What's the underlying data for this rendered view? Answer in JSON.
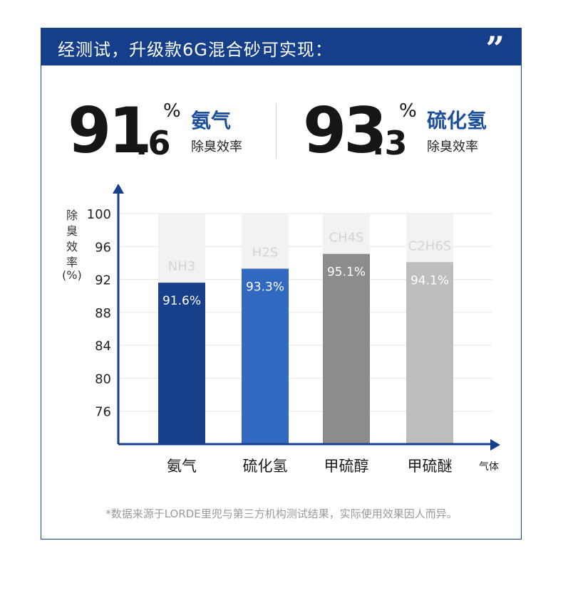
{
  "banner": {
    "title": "经测试，升级款6G混合砂可实现：",
    "quote_glyph": "”"
  },
  "stats": [
    {
      "int": "91",
      "dec": ".6",
      "unit": "%",
      "gas": "氨气",
      "label": "除臭效率"
    },
    {
      "int": "93",
      "dec": ".3",
      "unit": "%",
      "gas": "硫化氢",
      "label": "除臭效率"
    }
  ],
  "chart_data": {
    "type": "bar",
    "categories": [
      "氨气",
      "硫化氢",
      "甲硫醇",
      "甲硫醚"
    ],
    "formulas": [
      "NH3",
      "H2S",
      "CH4S",
      "C2H6S"
    ],
    "values": [
      91.6,
      93.3,
      95.1,
      94.1
    ],
    "value_labels": [
      "91.6%",
      "93.3%",
      "95.1%",
      "94.1%"
    ],
    "colors": [
      "#173f8a",
      "#3168c0",
      "#8c8c8c",
      "#bdbdbd"
    ],
    "ylabel": "除臭效率(%)",
    "xlabel": "气体",
    "yticks": [
      100,
      96,
      92,
      88,
      84,
      80,
      76
    ],
    "ylim": [
      72,
      100
    ],
    "grid": true
  },
  "footnote": "*数据来源于LORDE里兜与第三方机构测试结果，实际使用效果因人而异。"
}
